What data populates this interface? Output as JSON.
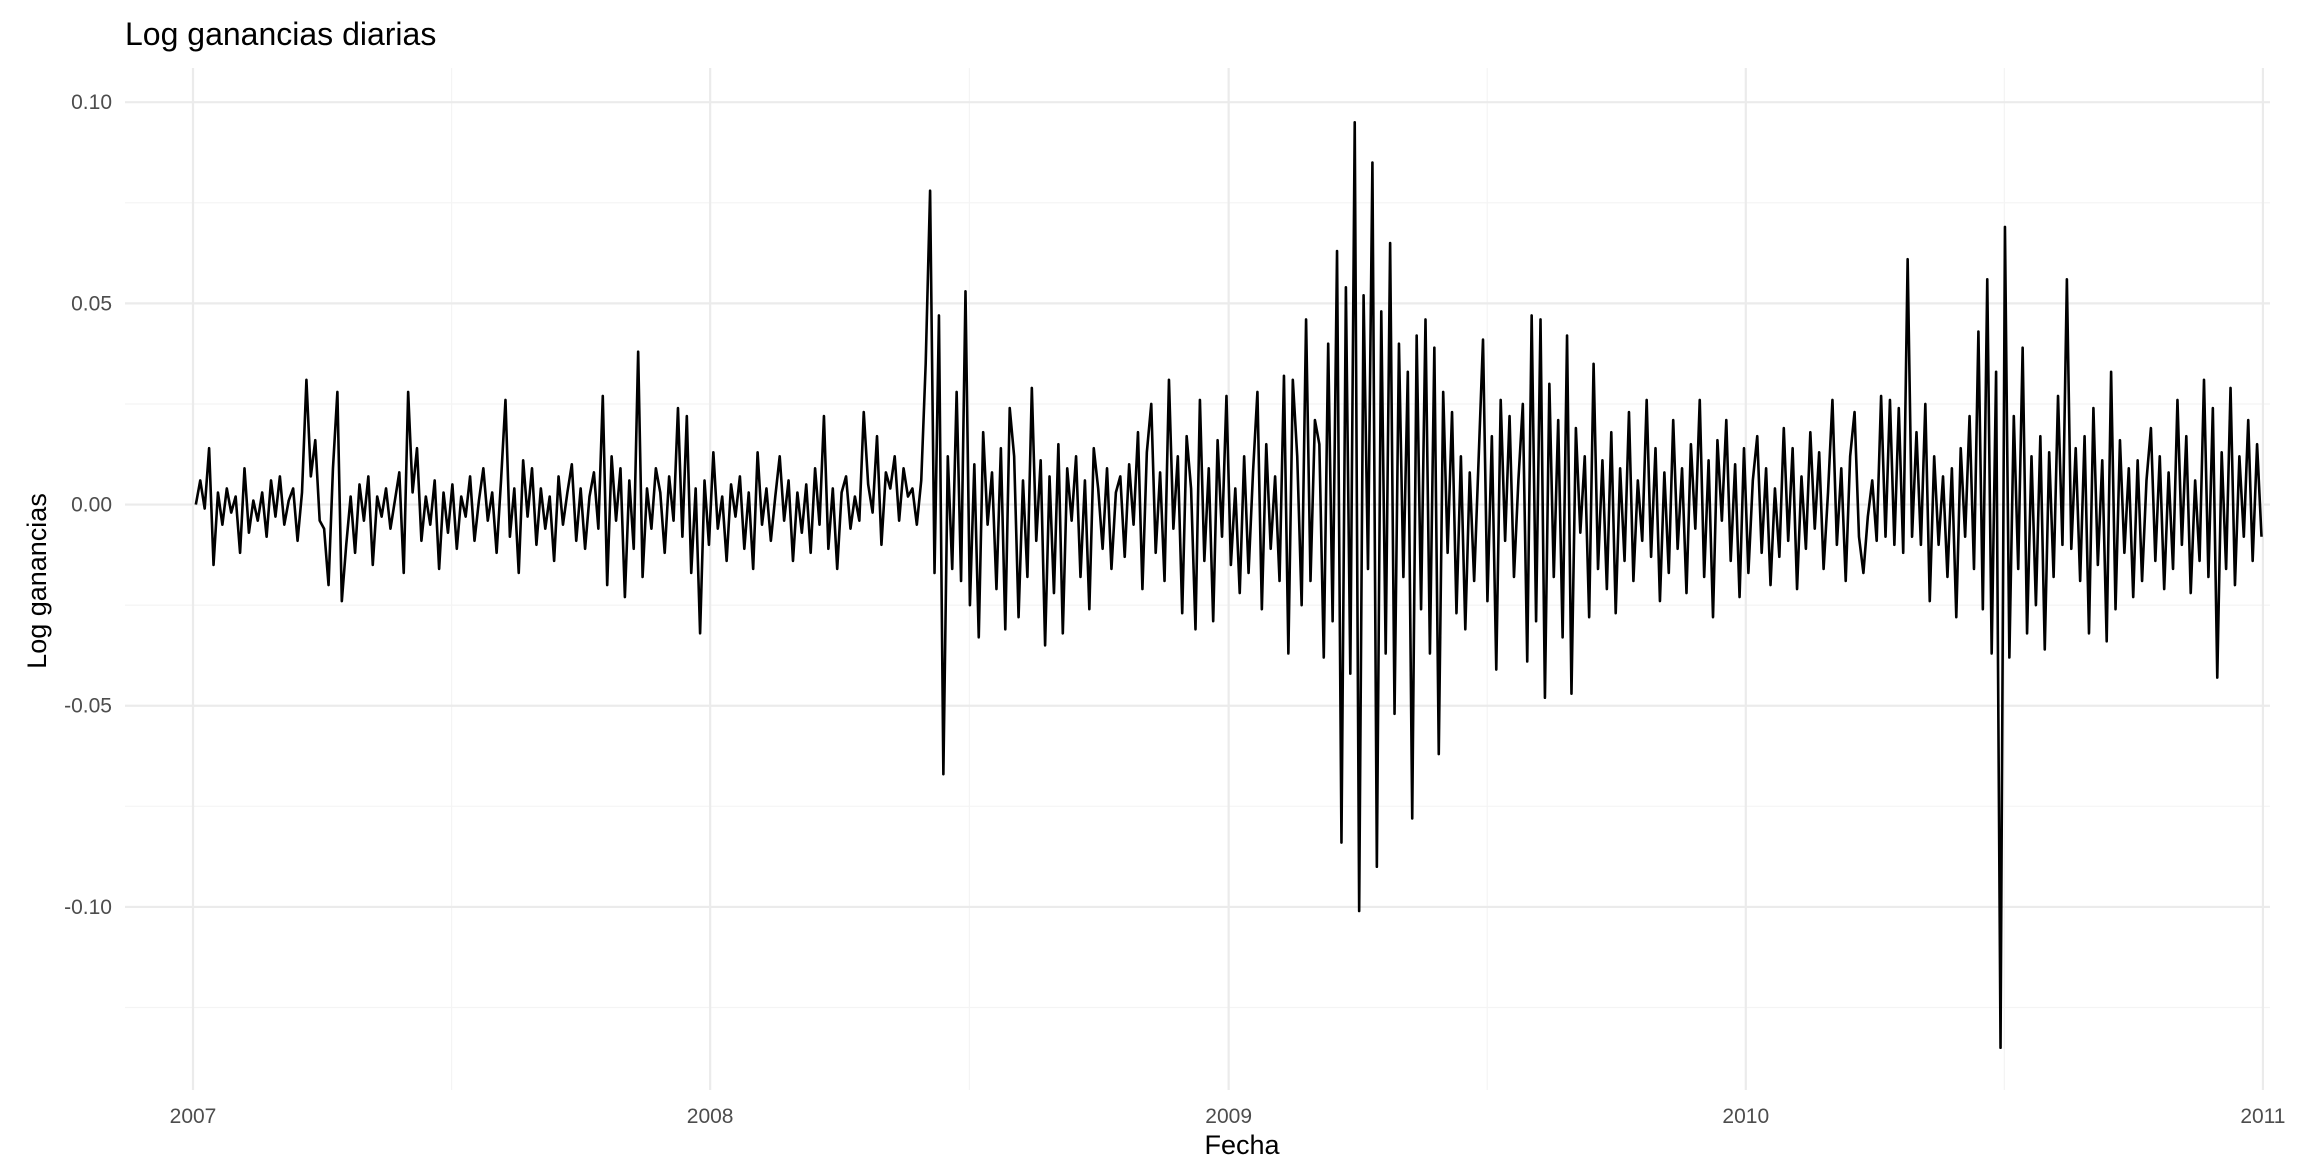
{
  "chart_data": {
    "type": "line",
    "title": "Log ganancias diarias",
    "xlabel": "Fecha",
    "ylabel": "Log ganancias",
    "x_ticks": [
      "2007",
      "2008",
      "2009",
      "2010",
      "2011"
    ],
    "y_ticks": [
      "0.10",
      "0.05",
      "0.00",
      "-0.05",
      "-0.10"
    ],
    "y_tick_values": [
      0.1,
      0.05,
      0.0,
      -0.05,
      -0.1
    ],
    "xlim": [
      "2006-11-14",
      "2011-01-06"
    ],
    "ylim": [
      -0.1455,
      0.1085
    ],
    "grid": true,
    "legend": "none",
    "line_color": "#000000",
    "series": [
      {
        "x_start": "2007-01-03",
        "x_end": "2010-12-31",
        "values": [
          0.0,
          0.006,
          -0.001,
          0.014,
          -0.015,
          0.003,
          -0.005,
          0.004,
          -0.002,
          0.002,
          -0.012,
          0.009,
          -0.007,
          0.001,
          -0.004,
          0.003,
          -0.008,
          0.006,
          -0.003,
          0.007,
          -0.005,
          0.001,
          0.004,
          -0.009,
          0.003,
          0.031,
          0.007,
          0.016,
          -0.004,
          -0.006,
          -0.02,
          0.009,
          0.028,
          -0.024,
          -0.01,
          0.002,
          -0.012,
          0.005,
          -0.004,
          0.007,
          -0.015,
          0.002,
          -0.003,
          0.004,
          -0.006,
          0.001,
          0.008,
          -0.017,
          0.028,
          0.003,
          0.014,
          -0.009,
          0.002,
          -0.005,
          0.006,
          -0.016,
          0.003,
          -0.007,
          0.005,
          -0.011,
          0.002,
          -0.003,
          0.007,
          -0.009,
          0.001,
          0.009,
          -0.004,
          0.003,
          -0.012,
          0.006,
          0.026,
          -0.008,
          0.004,
          -0.017,
          0.011,
          -0.003,
          0.009,
          -0.01,
          0.004,
          -0.006,
          0.002,
          -0.014,
          0.007,
          -0.005,
          0.003,
          0.01,
          -0.009,
          0.004,
          -0.011,
          0.002,
          0.008,
          -0.006,
          0.027,
          -0.02,
          0.012,
          -0.004,
          0.009,
          -0.023,
          0.006,
          -0.011,
          0.038,
          -0.018,
          0.004,
          -0.006,
          0.009,
          0.003,
          -0.012,
          0.007,
          -0.004,
          0.024,
          -0.008,
          0.022,
          -0.017,
          0.004,
          -0.032,
          0.006,
          -0.01,
          0.013,
          -0.006,
          0.002,
          -0.014,
          0.005,
          -0.003,
          0.007,
          -0.011,
          0.003,
          -0.016,
          0.013,
          -0.005,
          0.004,
          -0.009,
          0.002,
          0.012,
          -0.004,
          0.006,
          -0.014,
          0.003,
          -0.007,
          0.005,
          -0.012,
          0.009,
          -0.005,
          0.022,
          -0.011,
          0.004,
          -0.016,
          0.003,
          0.007,
          -0.006,
          0.002,
          -0.004,
          0.023,
          0.005,
          -0.002,
          0.017,
          -0.01,
          0.008,
          0.004,
          0.012,
          -0.004,
          0.009,
          0.002,
          0.004,
          -0.005,
          0.006,
          0.035,
          0.078,
          -0.017,
          0.047,
          -0.067,
          0.012,
          -0.016,
          0.028,
          -0.019,
          0.053,
          -0.025,
          0.01,
          -0.033,
          0.018,
          -0.005,
          0.008,
          -0.021,
          0.014,
          -0.031,
          0.024,
          0.012,
          -0.028,
          0.006,
          -0.018,
          0.029,
          -0.009,
          0.011,
          -0.035,
          0.007,
          -0.022,
          0.015,
          -0.032,
          0.009,
          -0.004,
          0.012,
          -0.018,
          0.006,
          -0.026,
          0.014,
          0.004,
          -0.011,
          0.009,
          -0.016,
          0.003,
          0.007,
          -0.013,
          0.01,
          -0.005,
          0.018,
          -0.021,
          0.013,
          0.025,
          -0.012,
          0.008,
          -0.019,
          0.031,
          -0.006,
          0.012,
          -0.027,
          0.017,
          0.004,
          -0.031,
          0.026,
          -0.014,
          0.009,
          -0.029,
          0.016,
          -0.008,
          0.027,
          -0.015,
          0.004,
          -0.022,
          0.012,
          -0.017,
          0.008,
          0.028,
          -0.026,
          0.015,
          -0.011,
          0.007,
          -0.019,
          0.032,
          -0.037,
          0.031,
          0.012,
          -0.025,
          0.046,
          -0.019,
          0.021,
          0.015,
          -0.038,
          0.04,
          -0.029,
          0.063,
          -0.084,
          0.054,
          -0.042,
          0.095,
          -0.101,
          0.052,
          -0.016,
          0.085,
          -0.09,
          0.048,
          -0.037,
          0.065,
          -0.052,
          0.04,
          -0.018,
          0.033,
          -0.078,
          0.042,
          -0.026,
          0.046,
          -0.037,
          0.039,
          -0.062,
          0.028,
          -0.012,
          0.023,
          -0.027,
          0.012,
          -0.031,
          0.008,
          -0.019,
          0.011,
          0.041,
          -0.024,
          0.017,
          -0.041,
          0.026,
          -0.009,
          0.022,
          -0.018,
          0.006,
          0.025,
          -0.039,
          0.047,
          -0.029,
          0.046,
          -0.048,
          0.03,
          -0.018,
          0.021,
          -0.033,
          0.042,
          -0.047,
          0.019,
          -0.007,
          0.012,
          -0.028,
          0.035,
          -0.016,
          0.011,
          -0.021,
          0.018,
          -0.027,
          0.009,
          -0.014,
          0.023,
          -0.019,
          0.006,
          -0.009,
          0.026,
          -0.013,
          0.014,
          -0.024,
          0.008,
          -0.017,
          0.021,
          -0.011,
          0.009,
          -0.022,
          0.015,
          -0.006,
          0.026,
          -0.018,
          0.011,
          -0.028,
          0.016,
          -0.004,
          0.021,
          -0.014,
          0.01,
          -0.023,
          0.014,
          -0.017,
          0.006,
          0.017,
          -0.012,
          0.009,
          -0.02,
          0.004,
          -0.013,
          0.019,
          -0.009,
          0.014,
          -0.021,
          0.007,
          -0.011,
          0.018,
          -0.006,
          0.013,
          -0.016,
          0.003,
          0.026,
          -0.01,
          0.009,
          -0.019,
          0.012,
          0.023,
          -0.008,
          -0.017,
          -0.003,
          0.006,
          -0.009,
          0.027,
          -0.008,
          0.026,
          -0.01,
          0.024,
          -0.012,
          0.061,
          -0.008,
          0.018,
          -0.01,
          0.025,
          -0.024,
          0.012,
          -0.01,
          0.007,
          -0.018,
          0.009,
          -0.028,
          0.014,
          -0.008,
          0.022,
          -0.016,
          0.043,
          -0.026,
          0.056,
          -0.037,
          0.033,
          -0.135,
          0.069,
          -0.038,
          0.022,
          -0.016,
          0.039,
          -0.032,
          0.012,
          -0.025,
          0.017,
          -0.036,
          0.013,
          -0.018,
          0.027,
          -0.01,
          0.056,
          -0.011,
          0.014,
          -0.019,
          0.017,
          -0.032,
          0.024,
          -0.015,
          0.011,
          -0.034,
          0.033,
          -0.026,
          0.016,
          -0.012,
          0.009,
          -0.023,
          0.011,
          -0.019,
          0.006,
          0.019,
          -0.014,
          0.012,
          -0.021,
          0.008,
          -0.016,
          0.026,
          -0.01,
          0.017,
          -0.022,
          0.006,
          -0.014,
          0.031,
          -0.018,
          0.024,
          -0.043,
          0.013,
          -0.016,
          0.029,
          -0.02,
          0.012,
          -0.008,
          0.021,
          -0.014,
          0.015,
          -0.008
        ]
      }
    ]
  }
}
